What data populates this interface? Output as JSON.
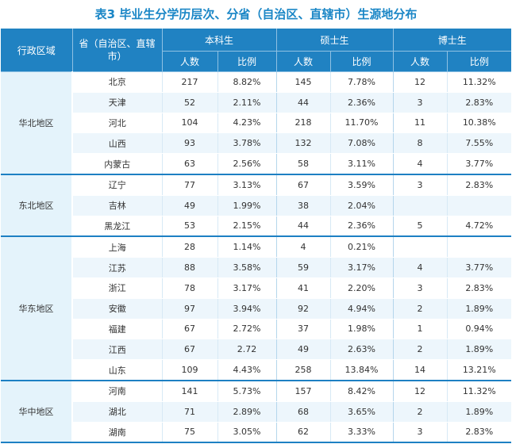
{
  "title": "表3  毕业生分学历层次、分省（自治区、直辖市）生源地分布",
  "header": {
    "region": "行政区域",
    "province": "省（自治区、直辖市）",
    "bachelor": "本科生",
    "master": "硕士生",
    "doctor": "博士生",
    "count": "人数",
    "ratio": "比例"
  },
  "regions": [
    {
      "name": "华北地区",
      "rows": [
        {
          "p": "北京",
          "b_n": "217",
          "b_r": "8.82%",
          "m_n": "145",
          "m_r": "7.78%",
          "d_n": "12",
          "d_r": "11.32%"
        },
        {
          "p": "天津",
          "b_n": "52",
          "b_r": "2.11%",
          "m_n": "44",
          "m_r": "2.36%",
          "d_n": "3",
          "d_r": "2.83%"
        },
        {
          "p": "河北",
          "b_n": "104",
          "b_r": "4.23%",
          "m_n": "218",
          "m_r": "11.70%",
          "d_n": "11",
          "d_r": "10.38%"
        },
        {
          "p": "山西",
          "b_n": "93",
          "b_r": "3.78%",
          "m_n": "132",
          "m_r": "7.08%",
          "d_n": "8",
          "d_r": "7.55%"
        },
        {
          "p": "内蒙古",
          "b_n": "63",
          "b_r": "2.56%",
          "m_n": "58",
          "m_r": "3.11%",
          "d_n": "4",
          "d_r": "3.77%"
        }
      ]
    },
    {
      "name": "东北地区",
      "rows": [
        {
          "p": "辽宁",
          "b_n": "77",
          "b_r": "3.13%",
          "m_n": "67",
          "m_r": "3.59%",
          "d_n": "3",
          "d_r": "2.83%"
        },
        {
          "p": "吉林",
          "b_n": "49",
          "b_r": "1.99%",
          "m_n": "38",
          "m_r": "2.04%",
          "d_n": "",
          "d_r": ""
        },
        {
          "p": "黑龙江",
          "b_n": "53",
          "b_r": "2.15%",
          "m_n": "44",
          "m_r": "2.36%",
          "d_n": "5",
          "d_r": "4.72%"
        }
      ]
    },
    {
      "name": "华东地区",
      "rows": [
        {
          "p": "上海",
          "b_n": "28",
          "b_r": "1.14%",
          "m_n": "4",
          "m_r": "0.21%",
          "d_n": "",
          "d_r": ""
        },
        {
          "p": "江苏",
          "b_n": "88",
          "b_r": "3.58%",
          "m_n": "59",
          "m_r": "3.17%",
          "d_n": "4",
          "d_r": "3.77%"
        },
        {
          "p": "浙江",
          "b_n": "78",
          "b_r": "3.17%",
          "m_n": "41",
          "m_r": "2.20%",
          "d_n": "3",
          "d_r": "2.83%"
        },
        {
          "p": "安徽",
          "b_n": "97",
          "b_r": "3.94%",
          "m_n": "92",
          "m_r": "4.94%",
          "d_n": "2",
          "d_r": "1.89%"
        },
        {
          "p": "福建",
          "b_n": "67",
          "b_r": "2.72%",
          "m_n": "37",
          "m_r": "1.98%",
          "d_n": "1",
          "d_r": "0.94%"
        },
        {
          "p": "江西",
          "b_n": "67",
          "b_r": "2.72",
          "m_n": "49",
          "m_r": "2.63%",
          "d_n": "2",
          "d_r": "1.89%"
        },
        {
          "p": "山东",
          "b_n": "109",
          "b_r": "4.43%",
          "m_n": "258",
          "m_r": "13.84%",
          "d_n": "14",
          "d_r": "13.21%"
        }
      ]
    },
    {
      "name": "华中地区",
      "rows": [
        {
          "p": "河南",
          "b_n": "141",
          "b_r": "5.73%",
          "m_n": "157",
          "m_r": "8.42%",
          "d_n": "12",
          "d_r": "11.32%"
        },
        {
          "p": "湖北",
          "b_n": "71",
          "b_r": "2.89%",
          "m_n": "68",
          "m_r": "3.65%",
          "d_n": "2",
          "d_r": "1.89%"
        },
        {
          "p": "湖南",
          "b_n": "75",
          "b_r": "3.05%",
          "m_n": "62",
          "m_r": "3.33%",
          "d_n": "3",
          "d_r": "2.83%"
        }
      ]
    }
  ]
}
